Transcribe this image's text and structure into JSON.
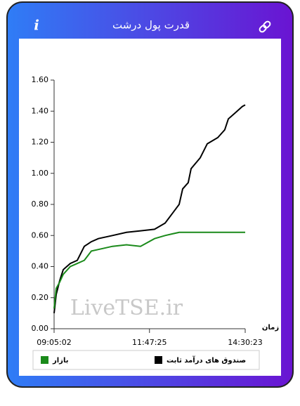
{
  "header": {
    "info": "i"
  },
  "chart_data": {
    "type": "line",
    "title": "قدرت پول درشت",
    "watermark": "LiveTSE.ir",
    "x_label": "زمان",
    "x": [
      "09:05:02",
      "09:08:37",
      "09:14:36",
      "09:20:35",
      "09:32:32",
      "09:44:32",
      "09:56:26",
      "10:08:26",
      "10:20:20",
      "10:44:20",
      "11:08:14",
      "11:32:08",
      "11:56:02",
      "12:14:02",
      "12:25:56",
      "12:37:56",
      "12:43:56",
      "12:53:26",
      "12:58:14",
      "13:13:50",
      "13:25:44",
      "13:43:44",
      "13:55:38",
      "14:01:38",
      "14:13:38",
      "14:25:32",
      "14:30:23"
    ],
    "series": [
      {
        "name": "صندوق های درآمد ثابت",
        "color": "#000000",
        "values": [
          0.1,
          0.22,
          0.31,
          0.38,
          0.42,
          0.44,
          0.53,
          0.56,
          0.58,
          0.6,
          0.62,
          0.63,
          0.64,
          0.68,
          0.74,
          0.8,
          0.9,
          0.94,
          1.03,
          1.1,
          1.19,
          1.23,
          1.28,
          1.35,
          1.39,
          1.43,
          1.44
        ]
      },
      {
        "name": "بازار",
        "color": "#1a8a1a",
        "values": [
          0.13,
          0.26,
          0.3,
          0.35,
          0.4,
          0.42,
          0.44,
          0.5,
          0.51,
          0.53,
          0.54,
          0.53,
          0.58,
          0.6,
          0.61,
          0.62,
          0.62,
          0.62,
          0.62,
          0.62,
          0.62,
          0.62,
          0.62,
          0.62,
          0.62,
          0.62,
          0.62
        ]
      }
    ],
    "xlim": [
      "09:05:02",
      "14:30:23"
    ],
    "xticks": [
      "09:05:02",
      "11:47:25",
      "14:30:23"
    ],
    "ylim": [
      0,
      1.6
    ],
    "yticks": [
      {
        "value": 0,
        "label": "0.00"
      },
      {
        "value": 0.2,
        "label": "0.20"
      },
      {
        "value": 0.4,
        "label": "0.40"
      },
      {
        "value": 0.6,
        "label": "0.60"
      },
      {
        "value": 0.8,
        "label": "0.80"
      },
      {
        "value": 1,
        "label": "1.00"
      },
      {
        "value": 1.2,
        "label": "1.20"
      },
      {
        "value": 1.4,
        "label": "1.40"
      },
      {
        "value": 1.6,
        "label": "1.60"
      }
    ]
  }
}
